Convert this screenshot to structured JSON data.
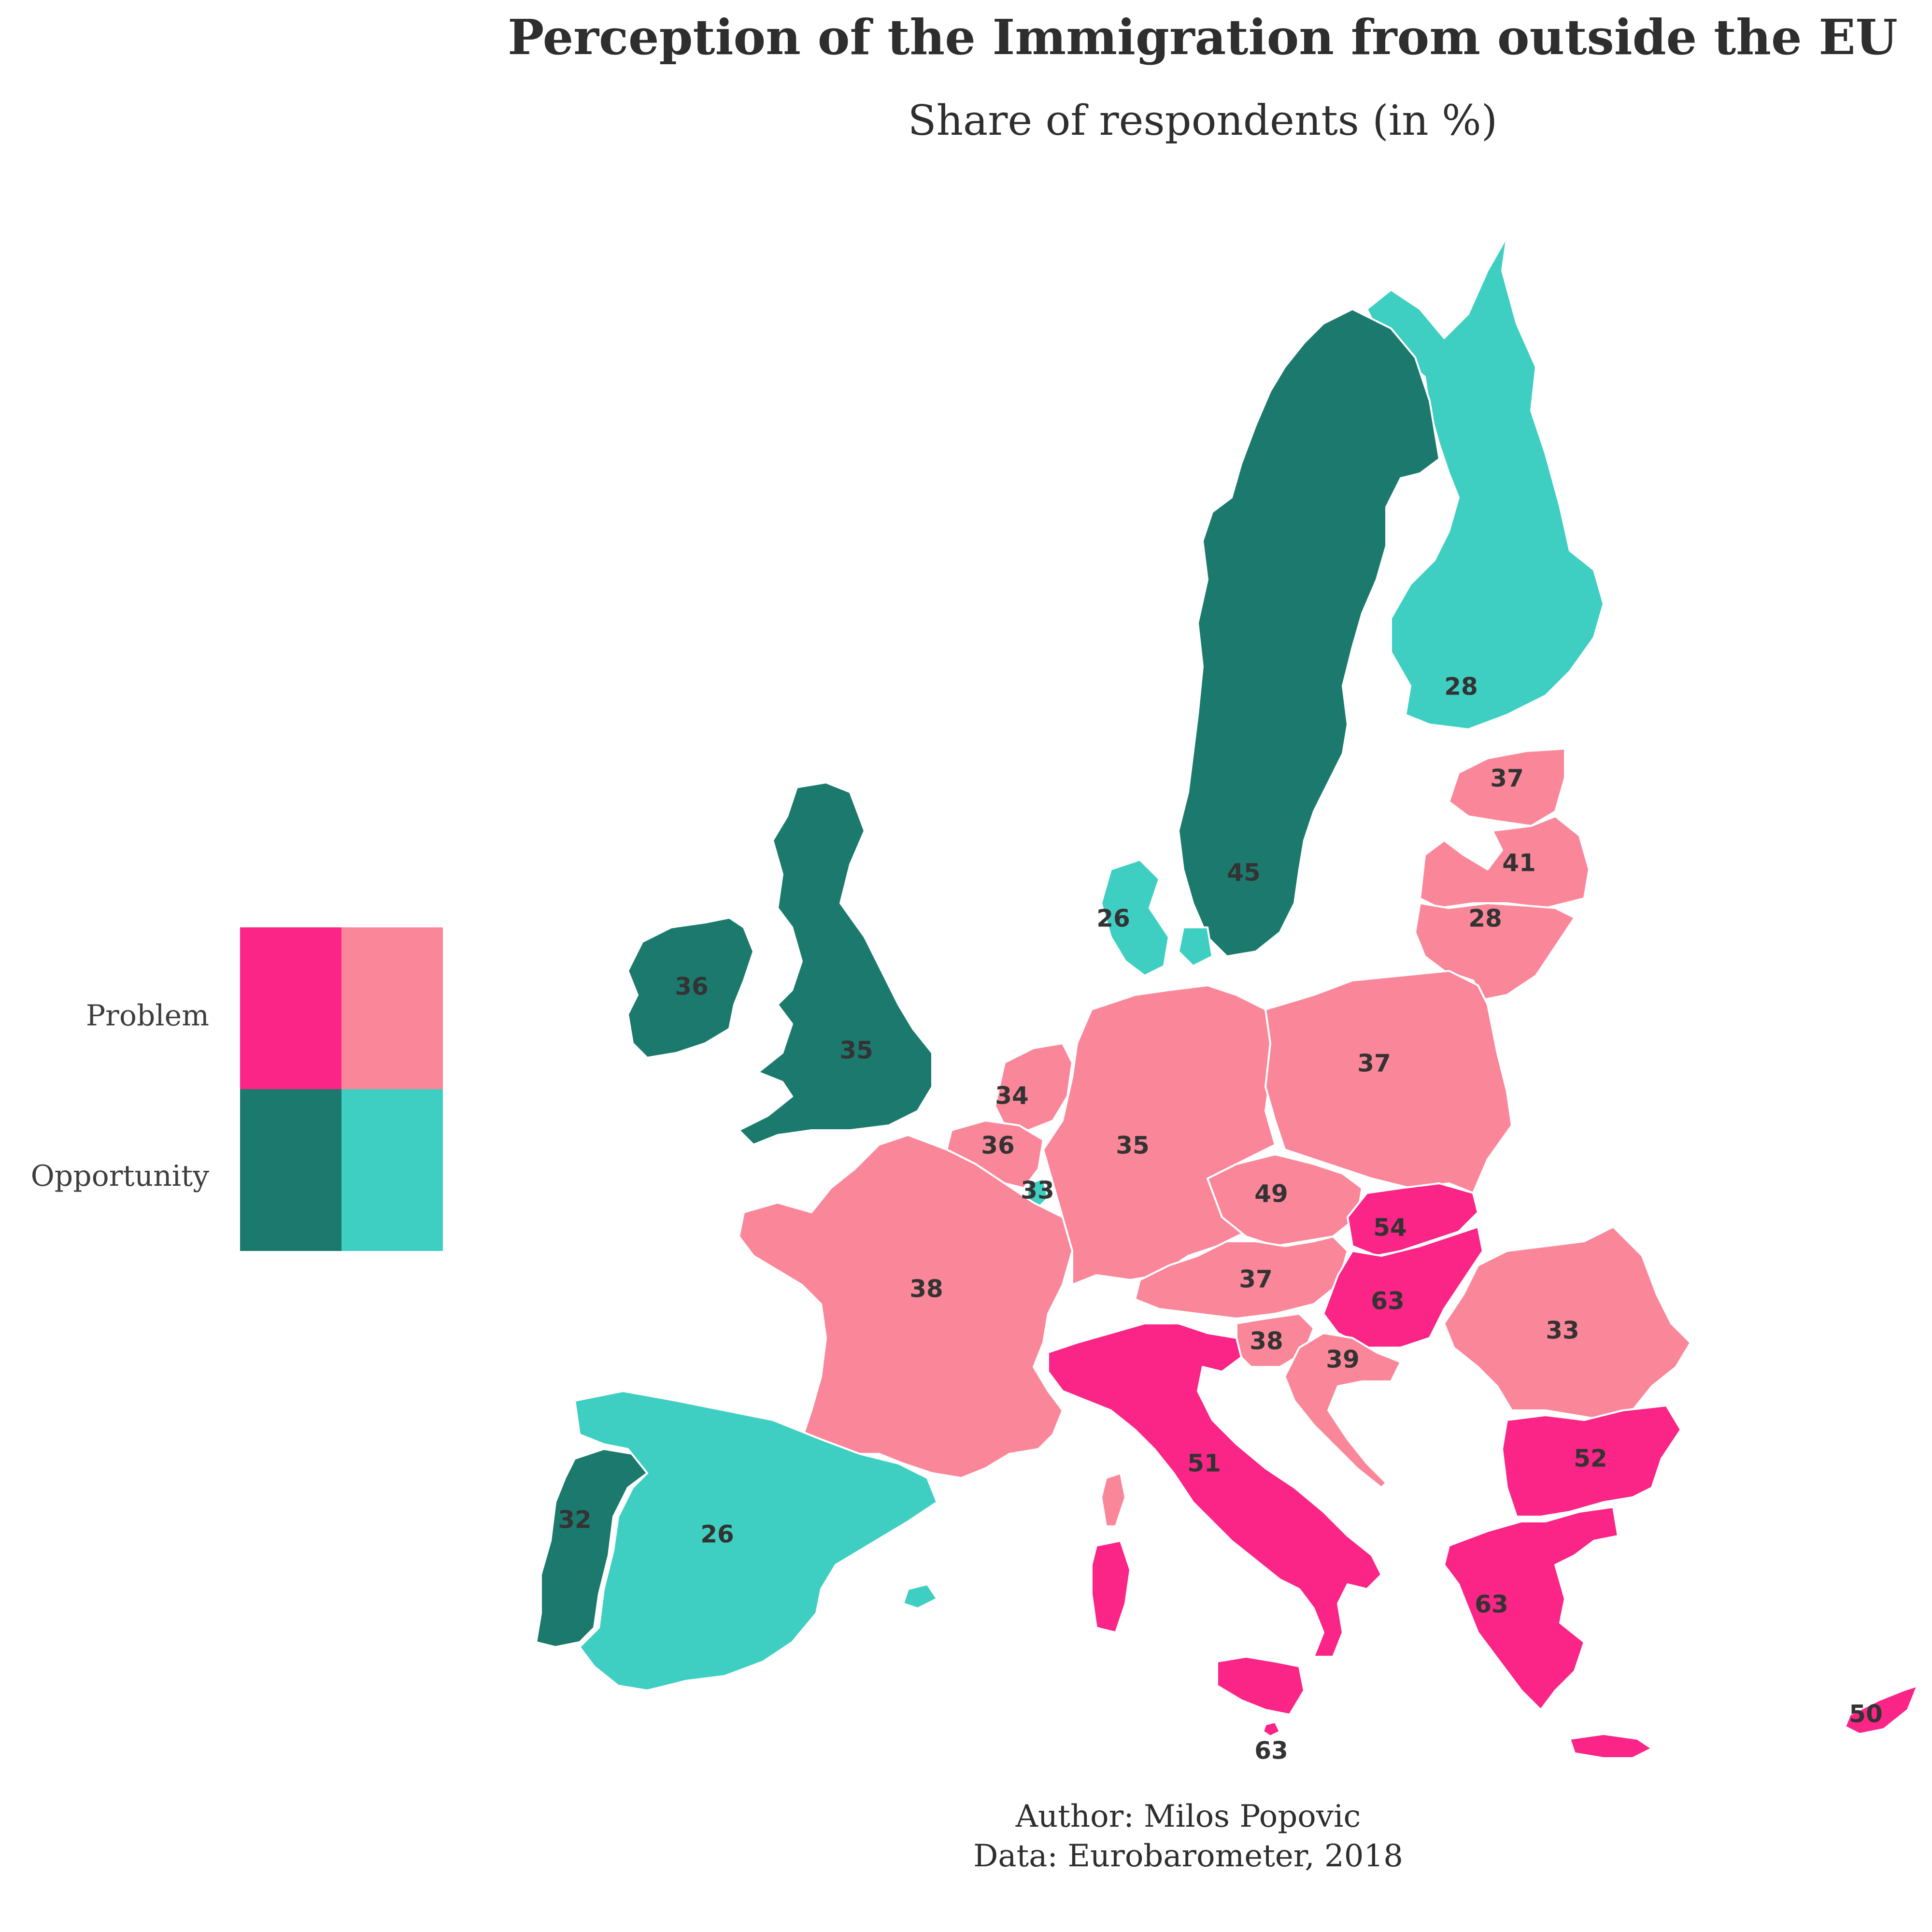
{
  "title": "Perception of the Immigration from outside the EU",
  "subtitle": "Share of respondents (in %)",
  "caption": {
    "author": "Author: Milos Popovic",
    "source": "Data: Eurobarometer, 2018"
  },
  "colors": {
    "problem_high": "#fa2586",
    "problem_low": "#fa8799",
    "opportunity_high": "#1b7a6d",
    "opportunity_low": "#3fcfc2",
    "label_text": "#333333"
  },
  "legend": {
    "rows": [
      "Problem",
      "Opportunity"
    ],
    "cells": [
      [
        "problem_high",
        "problem_low"
      ],
      [
        "opportunity_high",
        "opportunity_low"
      ]
    ]
  },
  "countries": [
    {
      "name": "Finland",
      "value": "28",
      "category": "opportunity_low"
    },
    {
      "name": "Sweden",
      "value": "45",
      "category": "opportunity_high"
    },
    {
      "name": "Estonia",
      "value": "37",
      "category": "problem_low"
    },
    {
      "name": "Latvia",
      "value": "41",
      "category": "problem_low"
    },
    {
      "name": "Lithuania",
      "value": "28",
      "category": "problem_low"
    },
    {
      "name": "Denmark",
      "value": "26",
      "category": "opportunity_low"
    },
    {
      "name": "Ireland",
      "value": "36",
      "category": "opportunity_high"
    },
    {
      "name": "United Kingdom",
      "value": "35",
      "category": "opportunity_high"
    },
    {
      "name": "Netherlands",
      "value": "34",
      "category": "problem_low"
    },
    {
      "name": "Belgium",
      "value": "36",
      "category": "problem_low"
    },
    {
      "name": "Luxembourg",
      "value": "33",
      "category": "opportunity_low"
    },
    {
      "name": "Germany",
      "value": "35",
      "category": "problem_low"
    },
    {
      "name": "Poland",
      "value": "37",
      "category": "problem_low"
    },
    {
      "name": "Czechia",
      "value": "49",
      "category": "problem_low"
    },
    {
      "name": "Slovakia",
      "value": "54",
      "category": "problem_high"
    },
    {
      "name": "Austria",
      "value": "37",
      "category": "problem_low"
    },
    {
      "name": "Hungary",
      "value": "63",
      "category": "problem_high"
    },
    {
      "name": "Slovenia",
      "value": "38",
      "category": "problem_low"
    },
    {
      "name": "Croatia",
      "value": "39",
      "category": "problem_low"
    },
    {
      "name": "Romania",
      "value": "33",
      "category": "problem_low"
    },
    {
      "name": "Bulgaria",
      "value": "52",
      "category": "problem_high"
    },
    {
      "name": "France",
      "value": "38",
      "category": "problem_low"
    },
    {
      "name": "Italy",
      "value": "51",
      "category": "problem_high"
    },
    {
      "name": "Greece",
      "value": "63",
      "category": "problem_high"
    },
    {
      "name": "Portugal",
      "value": "32",
      "category": "opportunity_high"
    },
    {
      "name": "Spain",
      "value": "26",
      "category": "opportunity_low"
    },
    {
      "name": "Malta",
      "value": "63",
      "category": "problem_high"
    },
    {
      "name": "Cyprus",
      "value": "50",
      "category": "problem_high"
    }
  ]
}
